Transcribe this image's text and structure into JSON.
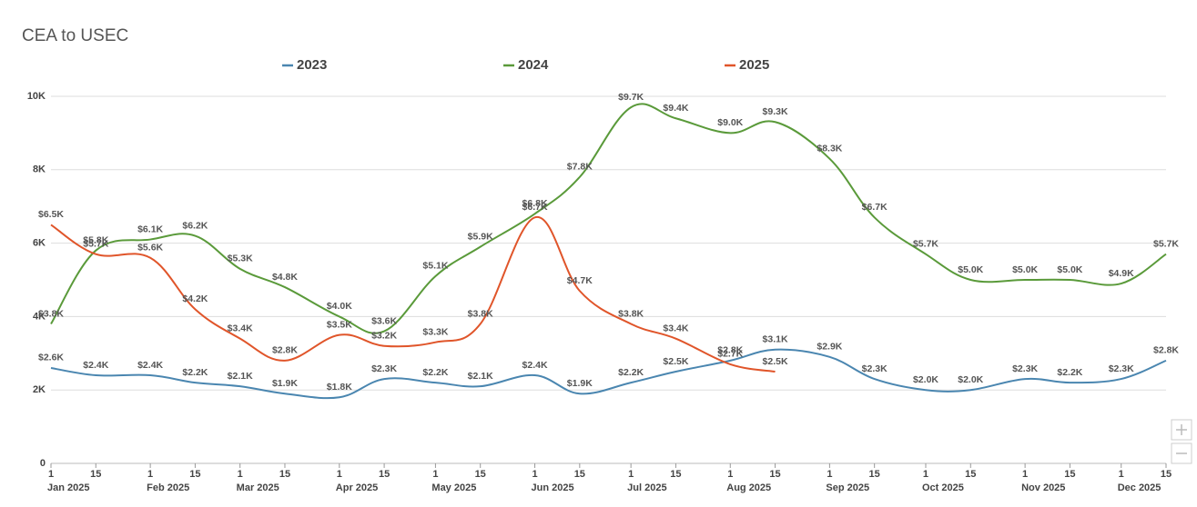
{
  "chart_data": {
    "type": "line",
    "title": "CEA to USEC",
    "x": [
      "2025-01-01",
      "2025-01-15",
      "2025-02-01",
      "2025-02-15",
      "2025-03-01",
      "2025-03-15",
      "2025-04-01",
      "2025-04-15",
      "2025-05-01",
      "2025-05-15",
      "2025-06-01",
      "2025-06-15",
      "2025-07-01",
      "2025-07-15",
      "2025-08-01",
      "2025-08-15",
      "2025-09-01",
      "2025-09-15",
      "2025-10-01",
      "2025-10-15",
      "2025-11-01",
      "2025-11-15",
      "2025-12-01",
      "2025-12-15"
    ],
    "xticks": [
      {
        "value": "2025-01-01",
        "label": "1"
      },
      {
        "value": "2025-01-15",
        "label": "15"
      },
      {
        "value": "2025-02-01",
        "label": "1"
      },
      {
        "value": "2025-02-15",
        "label": "15"
      },
      {
        "value": "2025-03-01",
        "label": "1"
      },
      {
        "value": "2025-03-15",
        "label": "15"
      },
      {
        "value": "2025-04-01",
        "label": "1"
      },
      {
        "value": "2025-04-15",
        "label": "15"
      },
      {
        "value": "2025-05-01",
        "label": "1"
      },
      {
        "value": "2025-05-15",
        "label": "15"
      },
      {
        "value": "2025-06-01",
        "label": "1"
      },
      {
        "value": "2025-06-15",
        "label": "15"
      },
      {
        "value": "2025-07-01",
        "label": "1"
      },
      {
        "value": "2025-07-15",
        "label": "15"
      },
      {
        "value": "2025-08-01",
        "label": "1"
      },
      {
        "value": "2025-08-15",
        "label": "15"
      },
      {
        "value": "2025-09-01",
        "label": "1"
      },
      {
        "value": "2025-09-15",
        "label": "15"
      },
      {
        "value": "2025-10-01",
        "label": "1"
      },
      {
        "value": "2025-10-15",
        "label": "15"
      },
      {
        "value": "2025-11-01",
        "label": "1"
      },
      {
        "value": "2025-11-15",
        "label": "15"
      },
      {
        "value": "2025-12-01",
        "label": "1"
      },
      {
        "value": "2025-12-15",
        "label": "15"
      }
    ],
    "month_labels": [
      {
        "value": "2025-01-01",
        "label": "Jan 2025"
      },
      {
        "value": "2025-02-01",
        "label": "Feb 2025"
      },
      {
        "value": "2025-03-01",
        "label": "Mar 2025"
      },
      {
        "value": "2025-04-01",
        "label": "Apr 2025"
      },
      {
        "value": "2025-05-01",
        "label": "May 2025"
      },
      {
        "value": "2025-06-01",
        "label": "Jun 2025"
      },
      {
        "value": "2025-07-01",
        "label": "Jul 2025"
      },
      {
        "value": "2025-08-01",
        "label": "Aug 2025"
      },
      {
        "value": "2025-09-01",
        "label": "Sep 2025"
      },
      {
        "value": "2025-10-01",
        "label": "Oct 2025"
      },
      {
        "value": "2025-11-01",
        "label": "Nov 2025"
      },
      {
        "value": "2025-12-01",
        "label": "Dec 2025"
      }
    ],
    "xlim": [
      "2025-01-01",
      "2025-12-15"
    ],
    "ylim": [
      0,
      10000
    ],
    "yticks": [
      0,
      {
        "value": 2000,
        "label": "2K"
      },
      {
        "value": 4000,
        "label": "4K"
      },
      {
        "value": 6000,
        "label": "6K"
      },
      {
        "value": 8000,
        "label": "8K"
      },
      {
        "value": 10000,
        "label": "10K"
      }
    ],
    "grid": true,
    "legend": "top",
    "series": [
      {
        "name": "2023",
        "color": "#4a86b0",
        "values": [
          2600,
          2400,
          2400,
          2200,
          2100,
          1900,
          1800,
          2300,
          2200,
          2100,
          2400,
          1900,
          2200,
          2500,
          2800,
          3100,
          2900,
          2300,
          2000,
          2000,
          2300,
          2200,
          2300,
          2800
        ],
        "value_labels": [
          "$2.6K",
          "$2.4K",
          "$2.4K",
          "$2.2K",
          "$2.1K",
          "$1.9K",
          "$1.8K",
          "$2.3K",
          "$2.2K",
          "$2.1K",
          "$2.4K",
          "$1.9K",
          "$2.2K",
          "$2.5K",
          "$2.8K",
          "$3.1K",
          "$2.9K",
          "$2.3K",
          "$2.0K",
          "$2.0K",
          "$2.3K",
          "$2.2K",
          "$2.3K",
          "$2.8K"
        ]
      },
      {
        "name": "2024",
        "color": "#5a9a3a",
        "values": [
          3800,
          5800,
          6100,
          6200,
          5300,
          4800,
          4000,
          3600,
          5100,
          5900,
          6800,
          7800,
          9700,
          9400,
          9000,
          9300,
          8300,
          6700,
          5700,
          5000,
          5000,
          5000,
          4900,
          5700
        ],
        "value_labels": [
          "$3.8K",
          "$5.8K",
          "$6.1K",
          "$6.2K",
          "$5.3K",
          "$4.8K",
          "$4.0K",
          "$3.6K",
          "$5.1K",
          "$5.9K",
          "$6.8K",
          "$7.8K",
          "$9.7K",
          "$9.4K",
          "$9.0K",
          "$9.3K",
          "$8.3K",
          "$6.7K",
          "$5.7K",
          "$5.0K",
          "$5.0K",
          "$5.0K",
          "$4.9K",
          "$5.7K"
        ]
      },
      {
        "name": "2025",
        "color": "#e0552a",
        "values": [
          6500,
          5700,
          5600,
          4200,
          3400,
          2800,
          3500,
          3200,
          3300,
          3800,
          6700,
          4700,
          3800,
          3400,
          2700,
          2500,
          null,
          null,
          null,
          null,
          null,
          null,
          null,
          null
        ],
        "value_labels": [
          "$6.5K",
          "$5.7K",
          "$5.6K",
          "$4.2K",
          "$3.4K",
          "$2.8K",
          "$3.5K",
          "$3.2K",
          "$3.3K",
          "$3.8K",
          "$6.7K",
          "$4.7K",
          "$3.8K",
          "$3.4K",
          "$2.7K",
          "$2.5K",
          null,
          null,
          null,
          null,
          null,
          null,
          null,
          null
        ]
      }
    ]
  }
}
